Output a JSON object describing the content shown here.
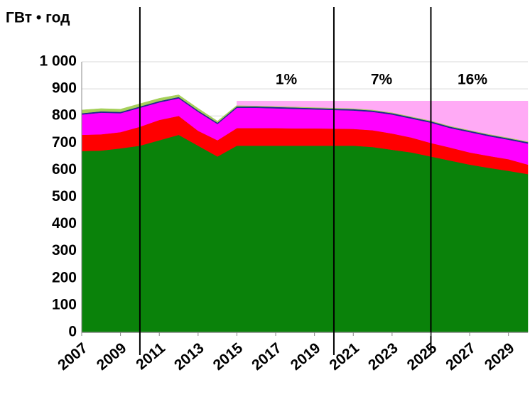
{
  "chart_data": {
    "type": "stacked_area",
    "y_label": "ГВт • год",
    "x": [
      2007,
      2008,
      2009,
      2010,
      2011,
      2012,
      2013,
      2014,
      2015,
      2016,
      2017,
      2018,
      2019,
      2020,
      2021,
      2022,
      2023,
      2024,
      2025,
      2026,
      2027,
      2028,
      2029,
      2030
    ],
    "series": [
      {
        "color": "#0a820a",
        "values": [
          670,
          672,
          680,
          690,
          710,
          730,
          690,
          650,
          690,
          690,
          690,
          690,
          690,
          690,
          690,
          685,
          675,
          665,
          650,
          635,
          620,
          608,
          597,
          585
        ]
      },
      {
        "color": "#ff0000",
        "values": [
          60,
          60,
          60,
          70,
          75,
          70,
          55,
          60,
          65,
          65,
          65,
          64,
          64,
          63,
          62,
          62,
          60,
          55,
          50,
          48,
          45,
          44,
          43,
          35
        ]
      },
      {
        "color": "#ff00ff",
        "values": [
          75,
          80,
          70,
          70,
          65,
          65,
          70,
          60,
          75,
          75,
          73,
          72,
          70,
          69,
          68,
          68,
          70,
          70,
          75,
          72,
          75,
          73,
          72,
          78
        ]
      },
      {
        "color": "#1f2a8f",
        "values": [
          5,
          5,
          5,
          5,
          5,
          5,
          5,
          5,
          5,
          5,
          5,
          5,
          5,
          5,
          5,
          5,
          5,
          5,
          5,
          5,
          5,
          5,
          5,
          5
        ]
      },
      {
        "color": "#a6d05a",
        "values": [
          12,
          10,
          10,
          10,
          10,
          8,
          8,
          6,
          4,
          3,
          3,
          3,
          3,
          3,
          3,
          3,
          3,
          3,
          3,
          3,
          3,
          3,
          3,
          3
        ]
      },
      {
        "color": "#ffaaf5",
        "values": [
          null,
          null,
          null,
          null,
          null,
          null,
          null,
          null,
          16,
          17,
          19,
          21,
          23,
          25,
          27,
          32,
          42,
          57,
          72,
          92,
          107,
          122,
          135,
          149
        ]
      }
    ],
    "markers": [
      2010,
      2020,
      2025
    ],
    "annotations": [
      "1%",
      "7%",
      "16%"
    ],
    "xlim": [
      2007,
      2030
    ],
    "xticks": [
      2007,
      2009,
      2011,
      2013,
      2015,
      2017,
      2019,
      2021,
      2023,
      2025,
      2027,
      2029
    ],
    "ylim": [
      0,
      1000
    ],
    "yticks": [
      0,
      100,
      200,
      300,
      400,
      500,
      600,
      700,
      800,
      900,
      {
        "value": 1000,
        "label": "1 000"
      }
    ],
    "grid": true
  }
}
